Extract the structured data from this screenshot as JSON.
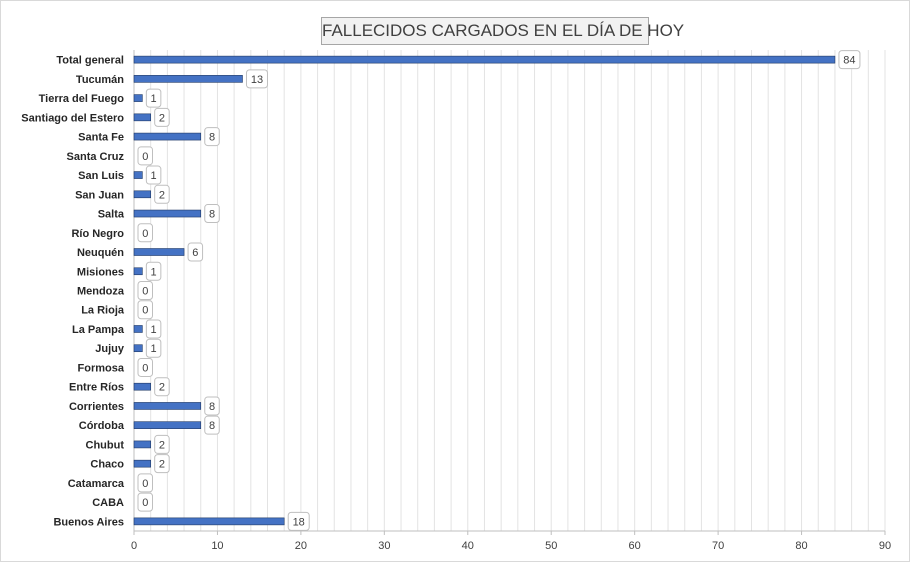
{
  "chart_data": {
    "type": "bar",
    "orientation": "horizontal",
    "title": "FALLECIDOS CARGADOS EN EL DÍA DE HOY",
    "categories": [
      "Total general",
      "Tucumán",
      "Tierra del Fuego",
      "Santiago del Estero",
      "Santa Fe",
      "Santa Cruz",
      "San Luis",
      "San Juan",
      "Salta",
      "Río Negro",
      "Neuquén",
      "Misiones",
      "Mendoza",
      "La Rioja",
      "La Pampa",
      "Jujuy",
      "Formosa",
      "Entre Ríos",
      "Corrientes",
      "Córdoba",
      "Chubut",
      "Chaco",
      "Catamarca",
      "CABA",
      "Buenos Aires"
    ],
    "values": [
      84,
      13,
      1,
      2,
      8,
      0,
      1,
      2,
      8,
      0,
      6,
      1,
      0,
      0,
      1,
      1,
      0,
      2,
      8,
      8,
      2,
      2,
      0,
      0,
      18
    ],
    "xlim": [
      0,
      90
    ],
    "xticks": [
      0,
      10,
      20,
      30,
      40,
      50,
      60,
      70,
      80,
      90
    ],
    "grid": true,
    "data_labels": true,
    "bar_color": "#4472c4",
    "bar_edge_color": "#1f3864"
  }
}
